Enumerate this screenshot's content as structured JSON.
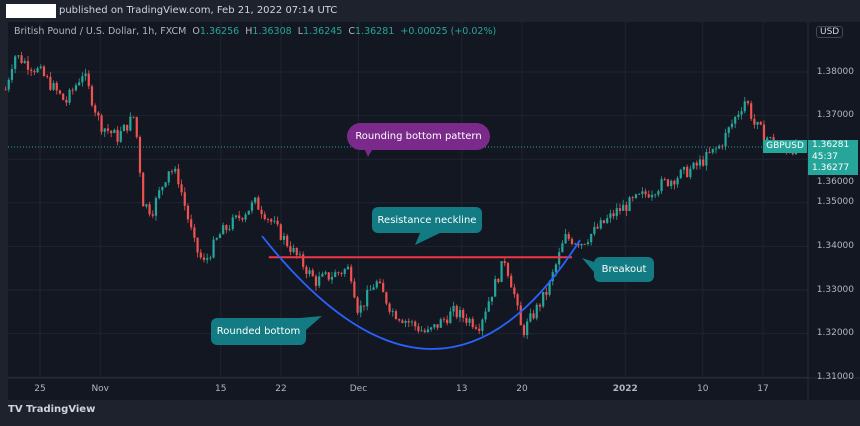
{
  "header": {
    "published": "published on TradingView.com, Feb 21, 2022 07:14 UTC"
  },
  "legend": {
    "symbol": "British Pound / U.S. Dollar, 1h, FXCM",
    "o_label": "O",
    "o": "1.36256",
    "h_label": "H",
    "h": "1.36308",
    "l_label": "L",
    "l": "1.36245",
    "c_label": "C",
    "c": "1.36281",
    "change": "+0.00025 (+0.02%)"
  },
  "price_scale": {
    "currency": "USD",
    "ticks": [
      "1.38000",
      "1.37000",
      "1.36000",
      "1.35000",
      "1.34000",
      "1.33000",
      "1.32000",
      "1.31000"
    ],
    "symbol_tag": "GBPUSD",
    "last_price": "1.36281",
    "countdown": "45:37",
    "bid": "1.36277"
  },
  "footer": {
    "brand": "TradingView"
  },
  "colors": {
    "up": "#26a69a",
    "down": "#ef5350",
    "neckline": "#f23645",
    "arc": "#2962ff",
    "teal_note": "#127b83",
    "purple_note": "#7b2a8c"
  },
  "chart_data": {
    "type": "candlestick",
    "ylim": [
      1.305,
      1.392
    ],
    "x_ticks": [
      {
        "label": "25",
        "date": "2021-10-25"
      },
      {
        "label": "Nov",
        "date": "2021-11-01"
      },
      {
        "label": "15",
        "date": "2021-11-15"
      },
      {
        "label": "22",
        "date": "2021-11-22"
      },
      {
        "label": "Dec",
        "date": "2021-12-01"
      },
      {
        "label": "13",
        "date": "2021-12-13"
      },
      {
        "label": "20",
        "date": "2021-12-20"
      },
      {
        "label": "2022",
        "date": "2022-01-01"
      },
      {
        "label": "10",
        "date": "2022-01-10"
      },
      {
        "label": "17",
        "date": "2022-01-17"
      }
    ],
    "price_path": [
      [
        "2021-10-21",
        1.376
      ],
      [
        "2021-10-22",
        1.384
      ],
      [
        "2021-10-25",
        1.38
      ],
      [
        "2021-10-28",
        1.373
      ],
      [
        "2021-10-30",
        1.38
      ],
      [
        "2021-11-01",
        1.368
      ],
      [
        "2021-11-03",
        1.365
      ],
      [
        "2021-11-05",
        1.37
      ],
      [
        "2021-11-06",
        1.35
      ],
      [
        "2021-11-07",
        1.348
      ],
      [
        "2021-11-09",
        1.358
      ],
      [
        "2021-11-10",
        1.356
      ],
      [
        "2021-11-12",
        1.34
      ],
      [
        "2021-11-13",
        1.336
      ],
      [
        "2021-11-15",
        1.343
      ],
      [
        "2021-11-19",
        1.35
      ],
      [
        "2021-11-20",
        1.348
      ],
      [
        "2021-11-23",
        1.34
      ],
      [
        "2021-11-26",
        1.332
      ],
      [
        "2021-11-30",
        1.335
      ],
      [
        "2021-12-01",
        1.325
      ],
      [
        "2021-12-03",
        1.332
      ],
      [
        "2021-12-05",
        1.325
      ],
      [
        "2021-12-09",
        1.32
      ],
      [
        "2021-12-12",
        1.325
      ],
      [
        "2021-12-15",
        1.322
      ],
      [
        "2021-12-18",
        1.337
      ],
      [
        "2021-12-19",
        1.33
      ],
      [
        "2021-12-20",
        1.32
      ],
      [
        "2021-12-23",
        1.33
      ],
      [
        "2021-12-25",
        1.342
      ],
      [
        "2021-12-27",
        1.341
      ],
      [
        "2021-12-31",
        1.348
      ],
      [
        "2022-01-05",
        1.354
      ],
      [
        "2022-01-09",
        1.358
      ],
      [
        "2022-01-12",
        1.363
      ],
      [
        "2022-01-15",
        1.374
      ],
      [
        "2022-01-16",
        1.368
      ],
      [
        "2022-01-19",
        1.362
      ],
      [
        "2022-01-21",
        1.3628
      ]
    ],
    "neckline": {
      "price": 1.3375,
      "from": "2021-11-20",
      "to": "2021-12-25"
    },
    "annotations": {
      "pattern": "Rounding bottom pattern",
      "neckline": "Resistance neckline",
      "breakout": "Breakout",
      "bottom": "Rounded bottom"
    }
  }
}
